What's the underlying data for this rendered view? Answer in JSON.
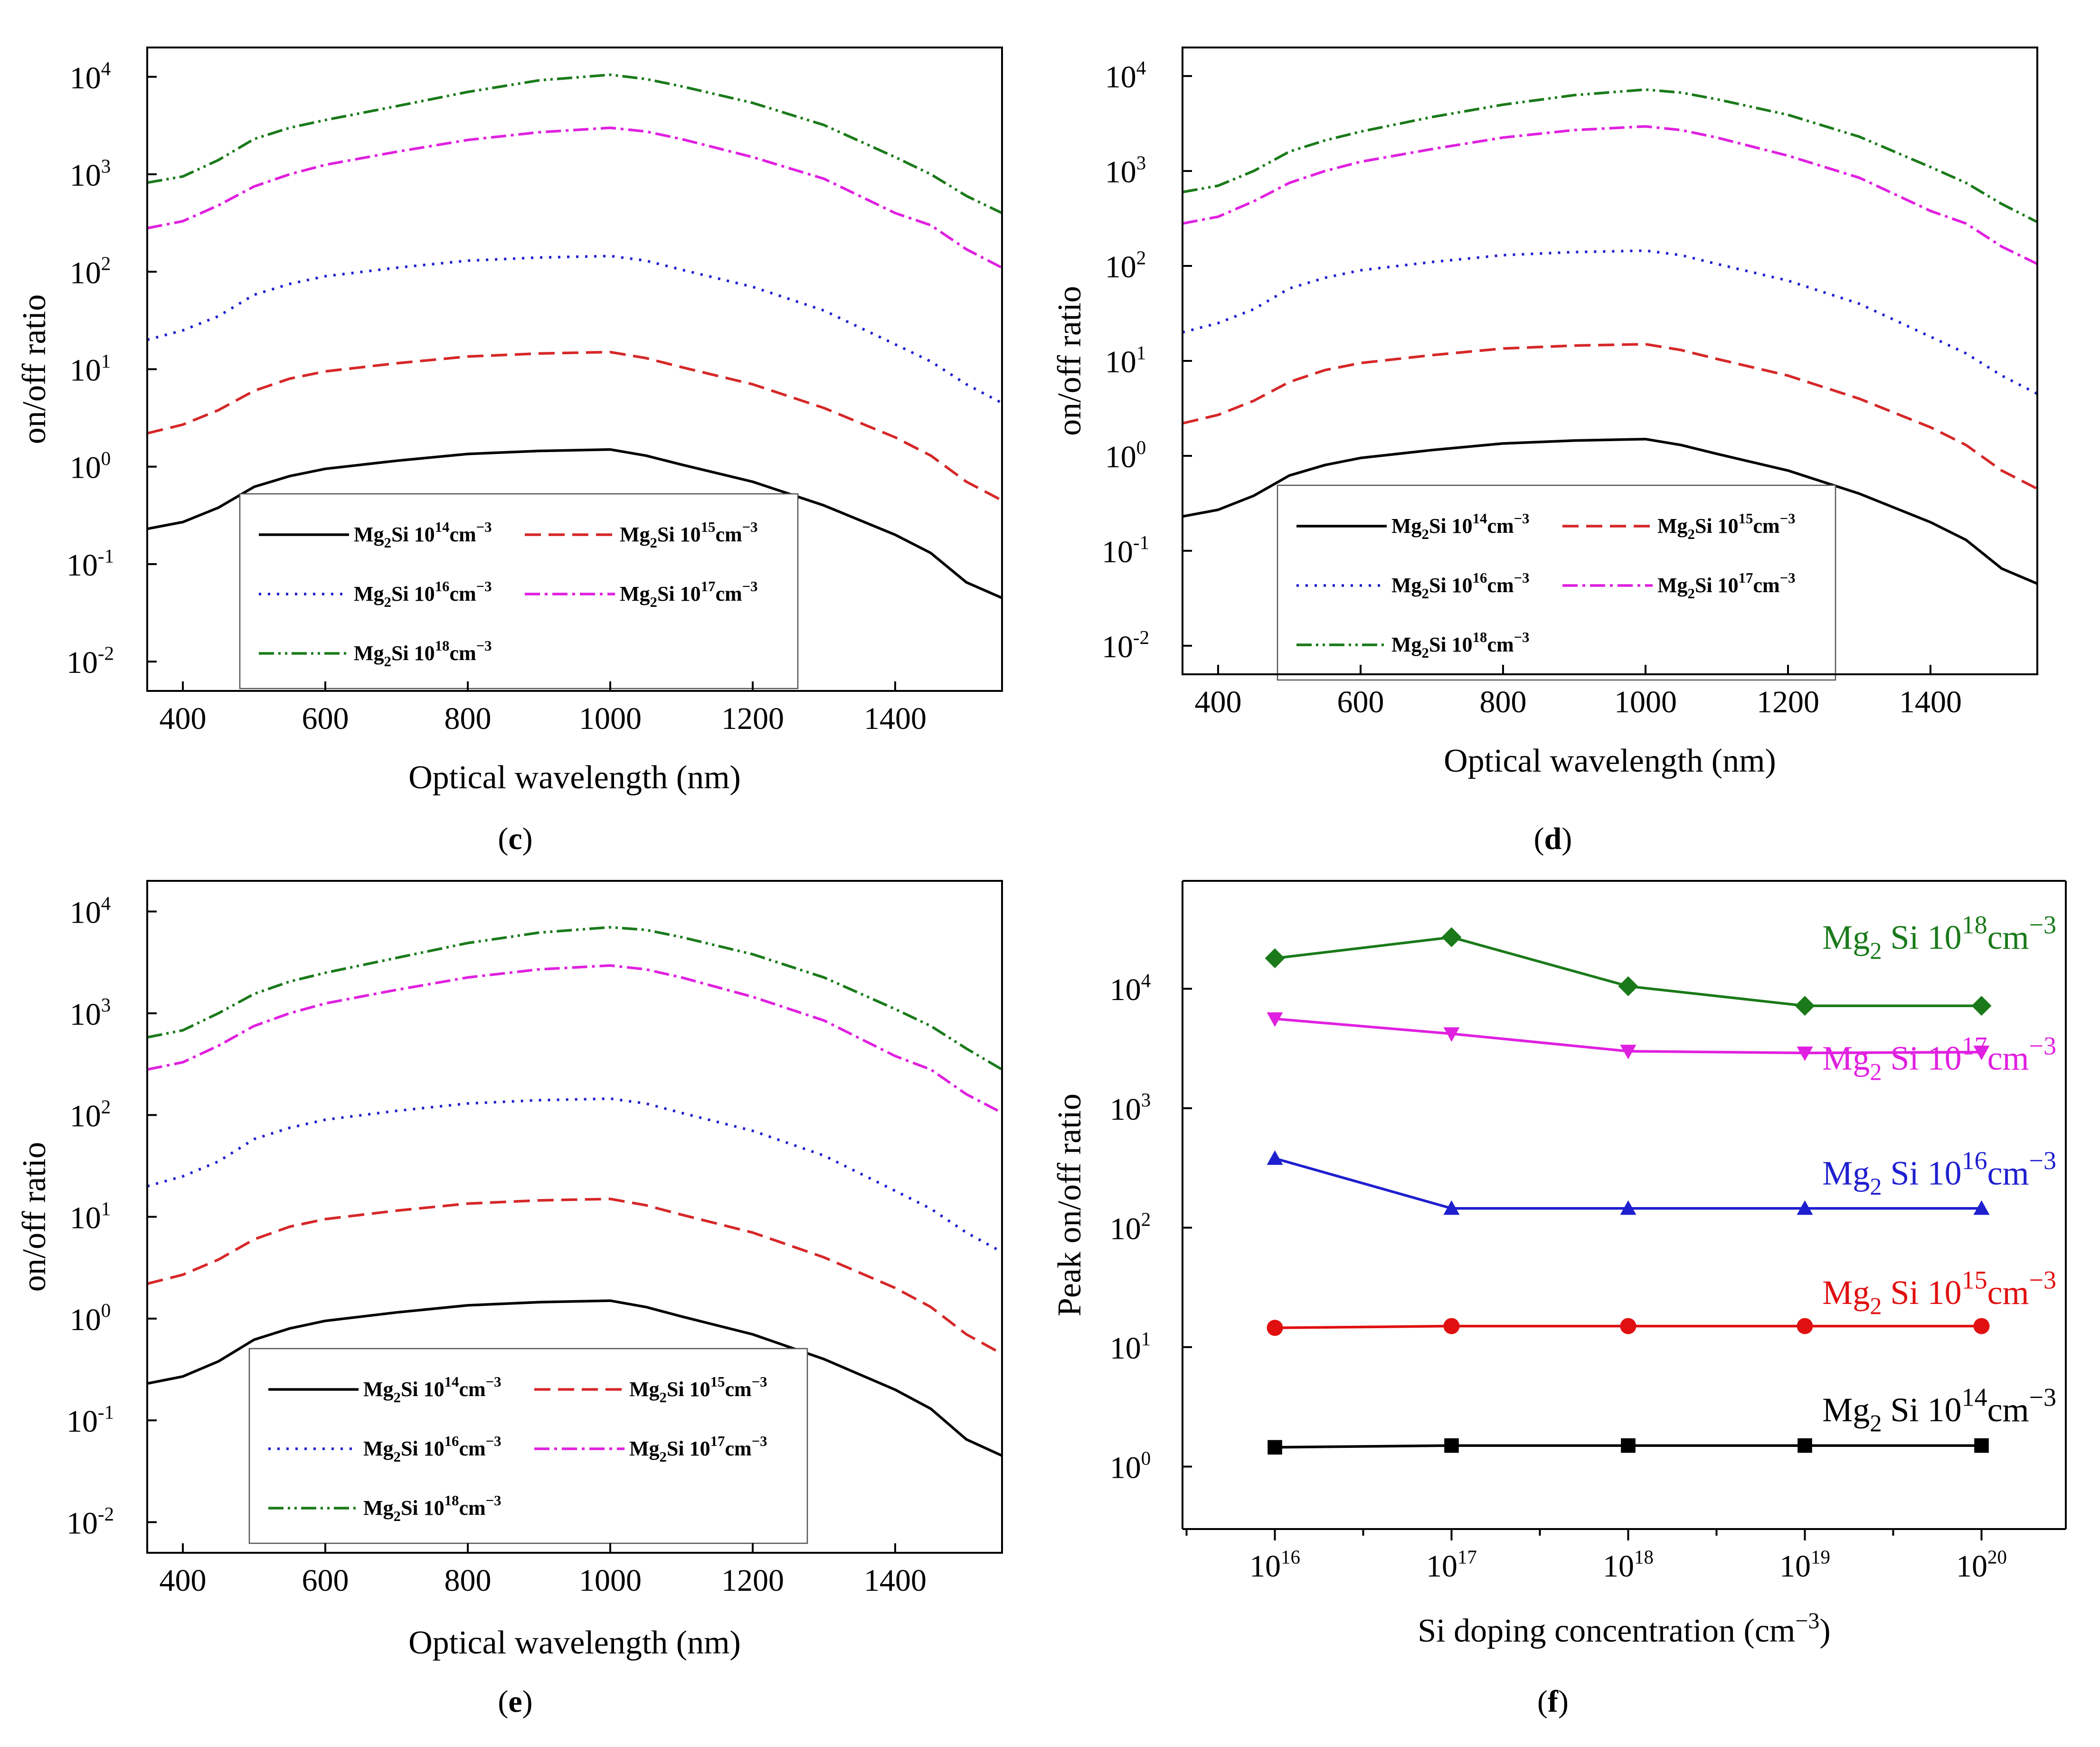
{
  "figure_type": "multi-panel scientific figure",
  "chart_data": [
    {
      "panel": "(c)",
      "type": "line",
      "title": "",
      "xlabel": "Optical wavelength (nm)",
      "ylabel": "on/off ratio",
      "yscale": "log",
      "xlim": [
        350,
        1550
      ],
      "ylim": [
        0.005,
        20000
      ],
      "xticks": [
        "400",
        "600",
        "800",
        "1000",
        "1200",
        "1400"
      ],
      "yticks": [
        {
          "base": "10",
          "exp": "4",
          "value": 10000
        },
        {
          "base": "10",
          "exp": "3",
          "value": 1000
        },
        {
          "base": "10",
          "exp": "2",
          "value": 100
        },
        {
          "base": "10",
          "exp": "1",
          "value": 10
        },
        {
          "base": "10",
          "exp": "0",
          "value": 1
        },
        {
          "base": "10",
          "exp": "-1",
          "value": 0.1
        },
        {
          "base": "10",
          "exp": "-2",
          "value": 0.01
        }
      ],
      "legend_location": "lower-center",
      "x": [
        350,
        400,
        450,
        500,
        550,
        600,
        700,
        800,
        900,
        1000,
        1050,
        1100,
        1200,
        1300,
        1400,
        1450,
        1500,
        1550
      ],
      "series": [
        {
          "name": "Mg2Si 10^14 cm^-3",
          "color": "#000000",
          "dash": "solid",
          "values": [
            0.23,
            0.27,
            0.38,
            0.62,
            0.8,
            0.95,
            1.15,
            1.35,
            1.45,
            1.5,
            1.3,
            1.05,
            0.7,
            0.4,
            0.2,
            0.13,
            0.065,
            0.045
          ]
        },
        {
          "name": "Mg2Si 10^15 cm^-3",
          "color": "#d62728",
          "dash": "dashed",
          "values": [
            2.2,
            2.7,
            3.8,
            6.0,
            8.0,
            9.5,
            11.5,
            13.5,
            14.5,
            15.0,
            13.0,
            10.5,
            7.0,
            4.0,
            2.0,
            1.3,
            0.7,
            0.45
          ]
        },
        {
          "name": "Mg2Si 10^16 cm^-3",
          "color": "#1f1fcf",
          "dash": "dotted",
          "values": [
            20,
            25,
            35,
            58,
            75,
            90,
            110,
            130,
            140,
            145,
            130,
            105,
            70,
            40,
            18,
            12,
            7,
            4.5
          ]
        },
        {
          "name": "Mg2Si 10^17 cm^-3",
          "color": "#e020e0",
          "dash": "dashdot",
          "values": [
            280,
            330,
            480,
            750,
            1000,
            1250,
            1700,
            2250,
            2700,
            3000,
            2750,
            2300,
            1500,
            900,
            400,
            300,
            170,
            110
          ]
        },
        {
          "name": "Mg2Si 10^18 cm^-3",
          "color": "#1a7a1a",
          "dash": "dashdotdot",
          "values": [
            820,
            950,
            1400,
            2300,
            3000,
            3600,
            5000,
            7000,
            9200,
            10500,
            9500,
            8000,
            5400,
            3200,
            1500,
            1000,
            600,
            400
          ]
        }
      ]
    },
    {
      "panel": "(d)",
      "type": "line",
      "title": "",
      "xlabel": "Optical wavelength (nm)",
      "ylabel": "on/off ratio",
      "yscale": "log",
      "xlim": [
        350,
        1550
      ],
      "ylim": [
        0.005,
        20000
      ],
      "xticks": [
        "400",
        "600",
        "800",
        "1000",
        "1200",
        "1400"
      ],
      "yticks": [
        {
          "base": "10",
          "exp": "4",
          "value": 10000
        },
        {
          "base": "10",
          "exp": "3",
          "value": 1000
        },
        {
          "base": "10",
          "exp": "2",
          "value": 100
        },
        {
          "base": "10",
          "exp": "1",
          "value": 10
        },
        {
          "base": "10",
          "exp": "0",
          "value": 1
        },
        {
          "base": "10",
          "exp": "-1",
          "value": 0.1
        },
        {
          "base": "10",
          "exp": "-2",
          "value": 0.01
        }
      ],
      "legend_location": "lower-center",
      "x": [
        350,
        400,
        450,
        500,
        550,
        600,
        700,
        800,
        900,
        1000,
        1050,
        1100,
        1200,
        1300,
        1400,
        1450,
        1500,
        1550
      ],
      "series": [
        {
          "name": "Mg2Si 10^14 cm^-3",
          "color": "#000000",
          "dash": "solid",
          "values": [
            0.23,
            0.27,
            0.38,
            0.62,
            0.8,
            0.95,
            1.15,
            1.35,
            1.45,
            1.5,
            1.3,
            1.05,
            0.7,
            0.4,
            0.2,
            0.13,
            0.065,
            0.045
          ]
        },
        {
          "name": "Mg2Si 10^15 cm^-3",
          "color": "#d62728",
          "dash": "dashed",
          "values": [
            2.2,
            2.7,
            3.8,
            6.0,
            8.0,
            9.5,
            11.5,
            13.5,
            14.5,
            15.0,
            13.0,
            10.5,
            7.0,
            4.0,
            2.0,
            1.3,
            0.7,
            0.45
          ]
        },
        {
          "name": "Mg2Si 10^16 cm^-3",
          "color": "#1f1fcf",
          "dash": "dotted",
          "values": [
            20,
            25,
            35,
            58,
            75,
            90,
            110,
            130,
            140,
            145,
            130,
            105,
            70,
            40,
            18,
            12,
            7,
            4.5
          ]
        },
        {
          "name": "Mg2Si 10^17 cm^-3",
          "color": "#e020e0",
          "dash": "dashdot",
          "values": [
            280,
            330,
            480,
            750,
            1000,
            1250,
            1700,
            2250,
            2700,
            2950,
            2700,
            2250,
            1450,
            850,
            380,
            280,
            160,
            105
          ]
        },
        {
          "name": "Mg2Si 10^18 cm^-3",
          "color": "#1a7a1a",
          "dash": "dashdotdot",
          "values": [
            600,
            700,
            1000,
            1600,
            2100,
            2600,
            3700,
            5000,
            6300,
            7200,
            6700,
            5700,
            3900,
            2300,
            1100,
            750,
            450,
            290
          ]
        }
      ]
    },
    {
      "panel": "(e)",
      "type": "line",
      "title": "",
      "xlabel": "Optical wavelength (nm)",
      "ylabel": "on/off ratio",
      "yscale": "log",
      "xlim": [
        350,
        1550
      ],
      "ylim": [
        0.005,
        20000
      ],
      "xticks": [
        "400",
        "600",
        "800",
        "1000",
        "1200",
        "1400"
      ],
      "yticks": [
        {
          "base": "10",
          "exp": "4",
          "value": 10000
        },
        {
          "base": "10",
          "exp": "3",
          "value": 1000
        },
        {
          "base": "10",
          "exp": "2",
          "value": 100
        },
        {
          "base": "10",
          "exp": "1",
          "value": 10
        },
        {
          "base": "10",
          "exp": "0",
          "value": 1
        },
        {
          "base": "10",
          "exp": "-1",
          "value": 0.1
        },
        {
          "base": "10",
          "exp": "-2",
          "value": 0.01
        }
      ],
      "legend_location": "lower-center",
      "x": [
        350,
        400,
        450,
        500,
        550,
        600,
        700,
        800,
        900,
        1000,
        1050,
        1100,
        1200,
        1300,
        1400,
        1450,
        1500,
        1550
      ],
      "series": [
        {
          "name": "Mg2Si 10^14 cm^-3",
          "color": "#000000",
          "dash": "solid",
          "values": [
            0.23,
            0.27,
            0.38,
            0.62,
            0.8,
            0.95,
            1.15,
            1.35,
            1.45,
            1.5,
            1.3,
            1.05,
            0.7,
            0.4,
            0.2,
            0.13,
            0.065,
            0.045
          ]
        },
        {
          "name": "Mg2Si 10^15 cm^-3",
          "color": "#d62728",
          "dash": "dashed",
          "values": [
            2.2,
            2.7,
            3.8,
            6.0,
            8.0,
            9.5,
            11.5,
            13.5,
            14.5,
            15.0,
            13.0,
            10.5,
            7.0,
            4.0,
            2.0,
            1.3,
            0.7,
            0.45
          ]
        },
        {
          "name": "Mg2Si 10^16 cm^-3",
          "color": "#1f1fcf",
          "dash": "dotted",
          "values": [
            20,
            25,
            35,
            58,
            75,
            90,
            110,
            130,
            140,
            145,
            130,
            105,
            70,
            40,
            18,
            12,
            7,
            4.5
          ]
        },
        {
          "name": "Mg2Si 10^17 cm^-3",
          "color": "#e020e0",
          "dash": "dashdot",
          "values": [
            280,
            330,
            480,
            750,
            1000,
            1250,
            1700,
            2250,
            2700,
            2950,
            2700,
            2250,
            1450,
            850,
            380,
            280,
            160,
            105
          ]
        },
        {
          "name": "Mg2Si 10^18 cm^-3",
          "color": "#1a7a1a",
          "dash": "dashdotdot",
          "values": [
            580,
            680,
            1000,
            1550,
            2050,
            2500,
            3500,
            4900,
            6200,
            7000,
            6600,
            5600,
            3800,
            2250,
            1100,
            750,
            450,
            280
          ]
        }
      ]
    },
    {
      "panel": "(f)",
      "type": "line",
      "title": "",
      "xlabel": "Si doping concentration (cm",
      "xlabel_sup": "−3",
      "xlabel_end": ")",
      "ylabel": "Peak on/off ratio",
      "xscale": "log",
      "yscale": "log",
      "xlim": [
        3000000000000000.0,
        3e+20
      ],
      "ylim": [
        0.3,
        80000
      ],
      "xticks": [
        {
          "base": "10",
          "exp": "16",
          "value": 1e+16
        },
        {
          "base": "10",
          "exp": "17",
          "value": 1e+17
        },
        {
          "base": "10",
          "exp": "18",
          "value": 1e+18
        },
        {
          "base": "10",
          "exp": "19",
          "value": 1e+19
        },
        {
          "base": "10",
          "exp": "20",
          "value": 1e+20
        }
      ],
      "yticks": [
        {
          "base": "10",
          "exp": "4",
          "value": 10000
        },
        {
          "base": "10",
          "exp": "3",
          "value": 1000
        },
        {
          "base": "10",
          "exp": "2",
          "value": 100
        },
        {
          "base": "10",
          "exp": "1",
          "value": 10
        },
        {
          "base": "10",
          "exp": "0",
          "value": 1
        }
      ],
      "x": [
        1e+16,
        1e+17,
        1e+18,
        1e+19,
        1e+20
      ],
      "series": [
        {
          "name": "Mg2Si 10^18 cm^-3",
          "color": "#1a7a1a",
          "marker": "diamond",
          "values": [
            18000,
            27000,
            10500,
            7200,
            7200
          ]
        },
        {
          "name": "Mg2Si 10^17 cm^-3",
          "color": "#e020e0",
          "marker": "triangle-down",
          "values": [
            5600,
            4200,
            3000,
            2900,
            2950
          ]
        },
        {
          "name": "Mg2Si 10^16 cm^-3",
          "color": "#1f1fcf",
          "marker": "triangle-up",
          "values": [
            380,
            145,
            145,
            145,
            145
          ]
        },
        {
          "name": "Mg2Si 10^15 cm^-3",
          "color": "#e01010",
          "marker": "circle",
          "values": [
            14.5,
            15,
            15,
            15,
            15
          ]
        },
        {
          "name": "Mg2Si 10^14 cm^-3",
          "color": "#000000",
          "marker": "square",
          "values": [
            1.45,
            1.5,
            1.5,
            1.5,
            1.5
          ]
        }
      ]
    }
  ],
  "legend_entries": [
    {
      "prefix": "Mg",
      "sub": "2",
      "mid": "Si 10",
      "sup1": "14",
      "unit": "cm",
      "sup2": "−3"
    },
    {
      "prefix": "Mg",
      "sub": "2",
      "mid": "Si 10",
      "sup1": "15",
      "unit": "cm",
      "sup2": "−3"
    },
    {
      "prefix": "Mg",
      "sub": "2",
      "mid": "Si 10",
      "sup1": "16",
      "unit": "cm",
      "sup2": "−3"
    },
    {
      "prefix": "Mg",
      "sub": "2",
      "mid": "Si 10",
      "sup1": "17",
      "unit": "cm",
      "sup2": "−3"
    },
    {
      "prefix": "Mg",
      "sub": "2",
      "mid": "Si 10",
      "sup1": "18",
      "unit": "cm",
      "sup2": "−3"
    }
  ],
  "panel_labels": [
    "c",
    "d",
    "e",
    "f"
  ],
  "colors": {
    "black": "#000000",
    "red": "#d62728",
    "blue": "#1f1fcf",
    "magenta": "#e020e0",
    "green": "#1a7a1a"
  }
}
